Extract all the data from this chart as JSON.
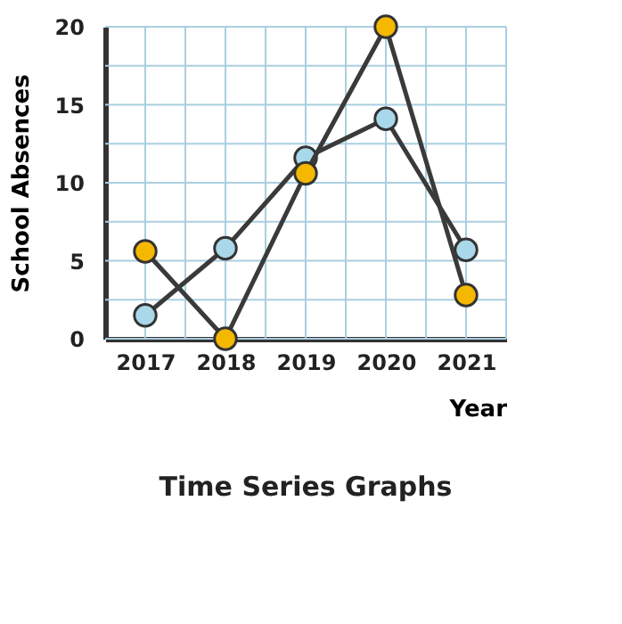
{
  "chart_data": {
    "type": "line",
    "title": "Time Series Graphs",
    "xlabel": "Year",
    "ylabel": "School Absences",
    "x": [
      2017,
      2018,
      2019,
      2020,
      2021
    ],
    "series": [
      {
        "color": "#a8d8ea",
        "values": [
          1.5,
          5.8,
          11.6,
          14.1,
          5.7
        ]
      },
      {
        "color": "#f5b800",
        "values": [
          5.6,
          0,
          10.6,
          20,
          2.8
        ]
      }
    ],
    "xlim": [
      2016.5,
      2021.5
    ],
    "xticks": [
      2017,
      {
        "value": 2017.5,
        "label": null
      },
      2018,
      {
        "value": 2018.5,
        "label": null
      },
      2019,
      {
        "value": 2019.5,
        "label": null
      },
      2020,
      {
        "value": 2020.5,
        "label": null
      },
      2021,
      {
        "value": 2021.5,
        "label": null
      }
    ],
    "ylim": [
      0,
      20
    ],
    "yticks": [
      0,
      {
        "value": 2.5,
        "label": null
      },
      5,
      {
        "value": 7.5,
        "label": null
      },
      10,
      {
        "value": 12.5,
        "label": null
      },
      15,
      {
        "value": 17.5,
        "label": null
      },
      20
    ],
    "grid": true,
    "marker": "circle",
    "line_style": "solid"
  }
}
